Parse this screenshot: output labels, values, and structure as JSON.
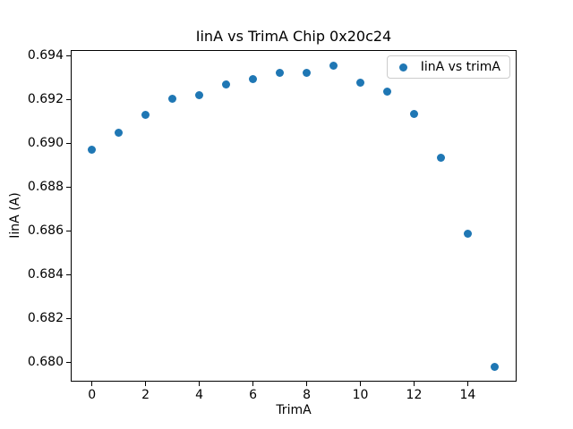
{
  "title": "IinA vs TrimA Chip 0x20c24",
  "axes": {
    "xlabel": "TrimA",
    "ylabel": "IinA (A)"
  },
  "legend": {
    "label": "IinA vs trimA"
  },
  "colors": {
    "marker": "#1f77b4",
    "spine": "#000000",
    "legend_border": "#cccccc"
  },
  "chart_data": {
    "type": "scatter",
    "title": "IinA vs TrimA Chip 0x20c24",
    "xlabel": "TrimA",
    "ylabel": "IinA (A)",
    "series": [
      {
        "name": "IinA vs trimA",
        "x": [
          0,
          1,
          2,
          3,
          4,
          5,
          6,
          7,
          8,
          9,
          10,
          11,
          12,
          13,
          14,
          15
        ],
        "y": [
          0.68971,
          0.69049,
          0.6913,
          0.69205,
          0.69223,
          0.6927,
          0.69294,
          0.69321,
          0.69325,
          0.69356,
          0.6928,
          0.69237,
          0.69134,
          0.68937,
          0.68588,
          0.67983
        ]
      }
    ],
    "xlim": [
      -0.79,
      15.82
    ],
    "ylim": [
      0.67914,
      0.69427
    ],
    "xticks": {
      "values": [
        0,
        2,
        4,
        6,
        8,
        10,
        12,
        14
      ],
      "labels": [
        "0",
        "2",
        "4",
        "6",
        "8",
        "10",
        "12",
        "14"
      ]
    },
    "yticks": {
      "values": [
        0.68,
        0.682,
        0.684,
        0.686,
        0.688,
        0.69,
        0.692,
        0.694
      ],
      "labels": [
        "0.680",
        "0.682",
        "0.684",
        "0.686",
        "0.688",
        "0.690",
        "0.692",
        "0.694"
      ]
    },
    "grid": false,
    "legend_position": "upper right",
    "marker_color": "#1f77b4"
  }
}
